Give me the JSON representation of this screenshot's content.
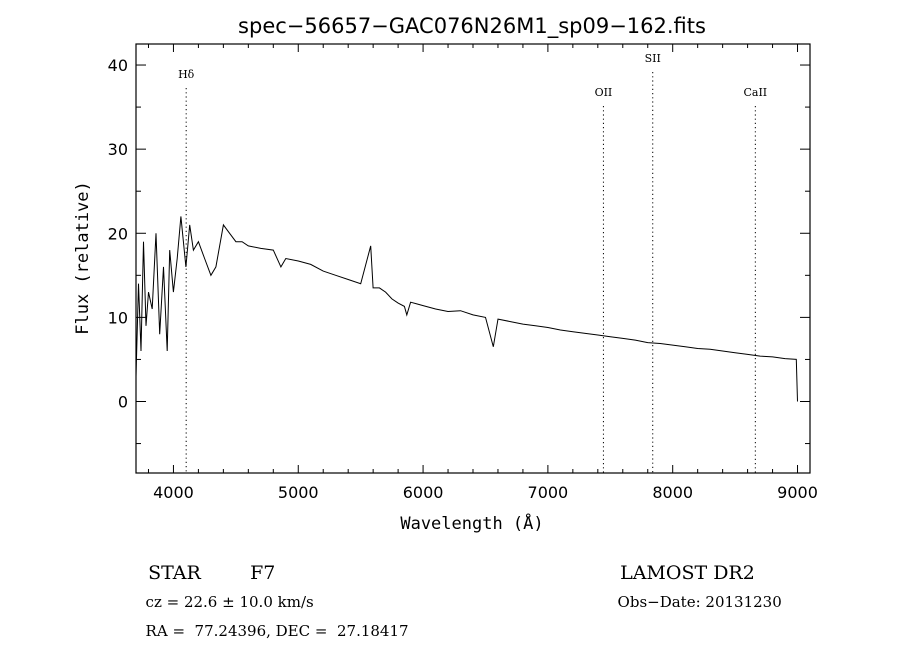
{
  "chart_data": {
    "type": "line",
    "title": "spec−56657−GAC076N26M1_sp09−162.fits",
    "xlabel": "Wavelength (Å)",
    "ylabel": "Flux (relative)",
    "xlim": [
      3700,
      9100
    ],
    "ylim": [
      -8.5,
      42.5
    ],
    "x_ticks": [
      4000,
      5000,
      6000,
      7000,
      8000,
      9000
    ],
    "y_ticks": [
      0,
      10,
      20,
      30,
      40
    ],
    "line_markers": [
      {
        "label": "Hδ",
        "x": 4102
      },
      {
        "label": "OII",
        "x": 7445
      },
      {
        "label": "SII",
        "x": 7840
      },
      {
        "label": "CaII",
        "x": 8662
      }
    ],
    "series": [
      {
        "x": [
          3700,
          3720,
          3740,
          3760,
          3780,
          3800,
          3830,
          3860,
          3890,
          3920,
          3950,
          3970,
          4000,
          4030,
          4060,
          4100,
          4130,
          4160,
          4200,
          4250,
          4300,
          4340,
          4400,
          4450,
          4500,
          4550,
          4600,
          4700,
          4800,
          4861,
          4900,
          5000,
          5100,
          5200,
          5300,
          5400,
          5500,
          5580,
          5600,
          5650,
          5700,
          5750,
          5800,
          5850,
          5870,
          5900,
          5950,
          6000,
          6100,
          6200,
          6300,
          6400,
          6500,
          6563,
          6600,
          6700,
          6800,
          6900,
          7000,
          7100,
          7200,
          7300,
          7400,
          7500,
          7600,
          7700,
          7800,
          7900,
          8000,
          8100,
          8200,
          8300,
          8400,
          8500,
          8600,
          8700,
          8800,
          8900,
          8990,
          9000
        ],
        "y": [
          3,
          14,
          6,
          19,
          9,
          13,
          11,
          20,
          8,
          16,
          6,
          18,
          13,
          17,
          22,
          16,
          21,
          18,
          19,
          17,
          15,
          16,
          21,
          20,
          19,
          19,
          18.5,
          18.2,
          18,
          16,
          17,
          16.7,
          16.3,
          15.5,
          15,
          14.5,
          14,
          18.5,
          13.5,
          13.5,
          13,
          12.2,
          11.7,
          11.3,
          10.3,
          11.8,
          11.6,
          11.4,
          11,
          10.7,
          10.8,
          10.3,
          10.0,
          6.5,
          9.8,
          9.5,
          9.2,
          9.0,
          8.8,
          8.5,
          8.3,
          8.1,
          7.9,
          7.7,
          7.5,
          7.3,
          7.0,
          6.9,
          6.7,
          6.5,
          6.3,
          6.2,
          6.0,
          5.8,
          5.6,
          5.4,
          5.3,
          5.1,
          5.0,
          0
        ]
      }
    ]
  },
  "info": {
    "object_class": "STAR",
    "subclass": "F7",
    "survey": "LAMOST DR2",
    "redshift": "cz = 22.6 ± 10.0 km/s",
    "obs_date": "Obs−Date: 20131230",
    "coords": "RA =  77.24396, DEC =  27.18417"
  }
}
